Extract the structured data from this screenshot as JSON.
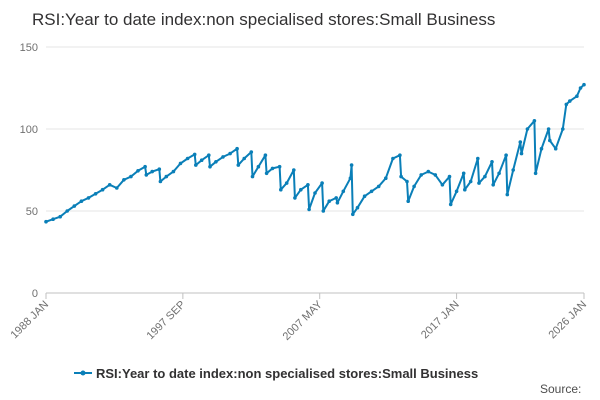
{
  "colors": {
    "series": "#0a7fb8",
    "grid": "#e6e6e6",
    "axis": "#c0c0c0"
  },
  "footer": {
    "source_label": "Source:"
  },
  "chart_data": {
    "type": "line",
    "title": "RSI:Year to date index:non specialised stores:Small Business",
    "xlabel": "",
    "ylabel": "",
    "ylim": [
      0,
      150
    ],
    "y_ticks": [
      0,
      50,
      100,
      150
    ],
    "x_ticks": [
      "1988 JAN",
      "1997 SEP",
      "2007 MAY",
      "2017 JAN",
      "2026 JAN"
    ],
    "x_range": [
      "1988-01",
      "2026-01"
    ],
    "grid": true,
    "legend_position": "bottom",
    "series": [
      {
        "name": "RSI:Year to date index:non specialised stores:Small Business",
        "points": [
          [
            "1988-01",
            43.5
          ],
          [
            "1988-07",
            45
          ],
          [
            "1989-01",
            46.5
          ],
          [
            "1989-07",
            50
          ],
          [
            "1990-01",
            53
          ],
          [
            "1990-07",
            56
          ],
          [
            "1991-01",
            58
          ],
          [
            "1991-07",
            60.5
          ],
          [
            "1992-01",
            63
          ],
          [
            "1992-07",
            66
          ],
          [
            "1993-01",
            64
          ],
          [
            "1993-07",
            69
          ],
          [
            "1994-01",
            71
          ],
          [
            "1994-07",
            74.5
          ],
          [
            "1995-01",
            77
          ],
          [
            "1995-02",
            72
          ],
          [
            "1995-07",
            74
          ],
          [
            "1996-01",
            75.5
          ],
          [
            "1996-02",
            68
          ],
          [
            "1996-07",
            71
          ],
          [
            "1997-01",
            74
          ],
          [
            "1997-07",
            79
          ],
          [
            "1998-01",
            82
          ],
          [
            "1998-07",
            84.5
          ],
          [
            "1998-08",
            78
          ],
          [
            "1999-01",
            81
          ],
          [
            "1999-07",
            84
          ],
          [
            "1999-08",
            77
          ],
          [
            "2000-01",
            80
          ],
          [
            "2000-07",
            83
          ],
          [
            "2001-01",
            85
          ],
          [
            "2001-07",
            88
          ],
          [
            "2001-08",
            78
          ],
          [
            "2002-01",
            82
          ],
          [
            "2002-07",
            86
          ],
          [
            "2002-08",
            71
          ],
          [
            "2003-01",
            77
          ],
          [
            "2003-07",
            84
          ],
          [
            "2003-08",
            73
          ],
          [
            "2004-01",
            76
          ],
          [
            "2004-07",
            77
          ],
          [
            "2004-08",
            63
          ],
          [
            "2005-01",
            67
          ],
          [
            "2005-07",
            75
          ],
          [
            "2005-08",
            58
          ],
          [
            "2006-01",
            63
          ],
          [
            "2006-07",
            66
          ],
          [
            "2006-08",
            51
          ],
          [
            "2007-01",
            61
          ],
          [
            "2007-07",
            67
          ],
          [
            "2007-08",
            50
          ],
          [
            "2008-01",
            56
          ],
          [
            "2008-07",
            58
          ],
          [
            "2008-08",
            55
          ],
          [
            "2009-01",
            62
          ],
          [
            "2009-07",
            70
          ],
          [
            "2009-08",
            78
          ],
          [
            "2009-09",
            48
          ],
          [
            "2010-01",
            52
          ],
          [
            "2010-07",
            59
          ],
          [
            "2011-01",
            62
          ],
          [
            "2011-07",
            65
          ],
          [
            "2012-01",
            70
          ],
          [
            "2012-07",
            82
          ],
          [
            "2013-01",
            84
          ],
          [
            "2013-02",
            71
          ],
          [
            "2013-07",
            68
          ],
          [
            "2013-08",
            56
          ],
          [
            "2014-01",
            65
          ],
          [
            "2014-07",
            72
          ],
          [
            "2015-01",
            74
          ],
          [
            "2015-07",
            72
          ],
          [
            "2016-01",
            66
          ],
          [
            "2016-07",
            71
          ],
          [
            "2016-08",
            54
          ],
          [
            "2017-01",
            62
          ],
          [
            "2017-07",
            73
          ],
          [
            "2017-08",
            63
          ],
          [
            "2018-01",
            68
          ],
          [
            "2018-07",
            82
          ],
          [
            "2018-08",
            67
          ],
          [
            "2019-01",
            71
          ],
          [
            "2019-07",
            80
          ],
          [
            "2019-08",
            66
          ],
          [
            "2020-01",
            73
          ],
          [
            "2020-07",
            84
          ],
          [
            "2020-08",
            60
          ],
          [
            "2021-01",
            75
          ],
          [
            "2021-07",
            92
          ],
          [
            "2021-08",
            85
          ],
          [
            "2022-01",
            100
          ],
          [
            "2022-07",
            105
          ],
          [
            "2022-08",
            73
          ],
          [
            "2023-01",
            88
          ],
          [
            "2023-07",
            100
          ],
          [
            "2023-08",
            93
          ],
          [
            "2024-01",
            88
          ],
          [
            "2024-07",
            100
          ],
          [
            "2024-10",
            115
          ],
          [
            "2025-01",
            117
          ],
          [
            "2025-07",
            120
          ],
          [
            "2025-10",
            125
          ],
          [
            "2026-01",
            127
          ]
        ]
      }
    ]
  }
}
